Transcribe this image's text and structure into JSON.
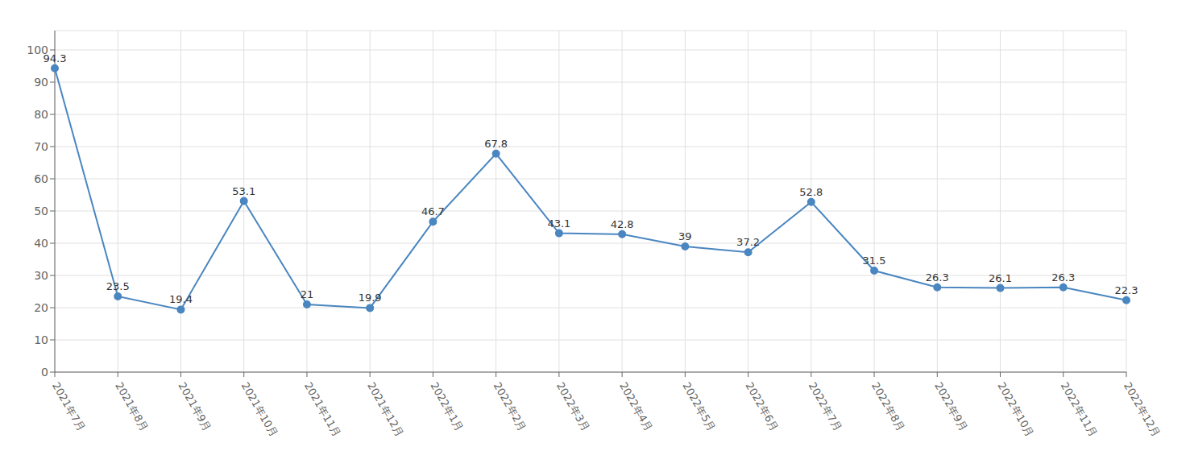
{
  "chart_data": {
    "type": "line",
    "categories": [
      "2021年7月",
      "2021年8月",
      "2021年9月",
      "2021年10月",
      "2021年11月",
      "2021年12月",
      "2022年1月",
      "2022年2月",
      "2022年3月",
      "2022年4月",
      "2022年5月",
      "2022年6月",
      "2022年7月",
      "2022年8月",
      "2022年9月",
      "2022年10月",
      "2022年11月",
      "2022年12月"
    ],
    "values": [
      94.3,
      23.5,
      19.4,
      53.1,
      21,
      19.9,
      46.7,
      67.8,
      43.1,
      42.8,
      39,
      37.2,
      52.8,
      31.5,
      26.3,
      26.1,
      26.3,
      22.3
    ],
    "color": "#4a86c0",
    "ylim": [
      0,
      106
    ],
    "yticks": [
      0,
      10,
      20,
      30,
      40,
      50,
      60,
      70,
      80,
      90,
      100
    ],
    "grid": true,
    "data_labels": true,
    "marker": "circle"
  }
}
